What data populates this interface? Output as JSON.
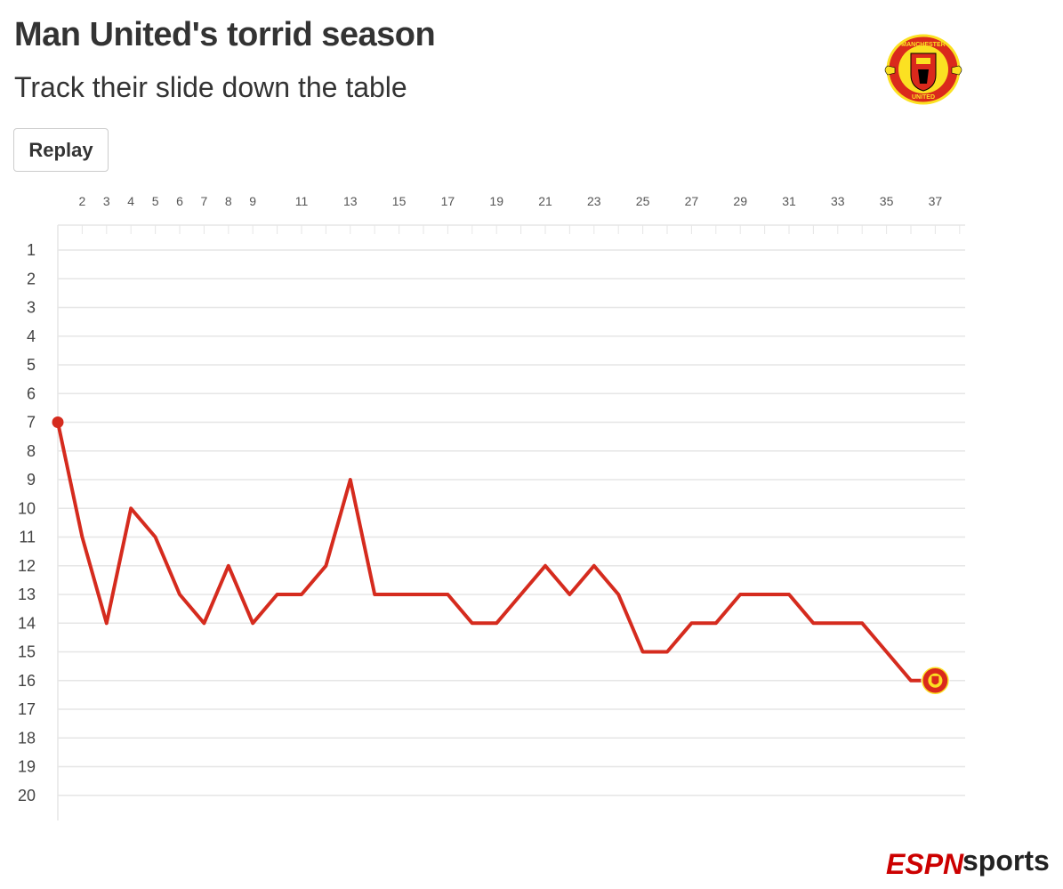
{
  "header": {
    "title": "Man United's torrid season",
    "subtitle": "Track their slide down the table"
  },
  "controls": {
    "replay_label": "Replay"
  },
  "branding": {
    "crest_text_top": "MANCHESTER",
    "crest_text_bottom": "UNITED",
    "footer_logo_left": "ESPN",
    "footer_logo_right": "sports"
  },
  "colors": {
    "line": "#d52b1e",
    "grid": "#e6e6e6",
    "crest_red": "#da291c",
    "crest_gold": "#fbe122"
  },
  "chart_data": {
    "type": "line",
    "title": "Man United's torrid season",
    "subtitle": "Track their slide down the table",
    "xlabel": "",
    "ylabel": "",
    "x_tick_labels": [
      2,
      3,
      4,
      5,
      6,
      7,
      8,
      9,
      11,
      13,
      15,
      17,
      19,
      21,
      23,
      25,
      27,
      29,
      31,
      33,
      35,
      37
    ],
    "y_tick_labels": [
      1,
      2,
      3,
      4,
      5,
      6,
      7,
      8,
      9,
      10,
      11,
      12,
      13,
      14,
      15,
      16,
      17,
      18,
      19,
      20
    ],
    "xlim": [
      1,
      38
    ],
    "ylim": [
      1,
      20
    ],
    "y_inverted": true,
    "grid": true,
    "series": [
      {
        "x": [
          1,
          2,
          3,
          4,
          5,
          6,
          7,
          8,
          9,
          10,
          11,
          12,
          13,
          14,
          15,
          16,
          17,
          18,
          19,
          20,
          21,
          22,
          23,
          24,
          25,
          26,
          27,
          28,
          29,
          30,
          31,
          32,
          33,
          34,
          35,
          36,
          37
        ],
        "values": [
          7,
          11,
          14,
          10,
          11,
          13,
          14,
          12,
          14,
          13,
          13,
          12,
          9,
          13,
          13,
          13,
          13,
          14,
          14,
          13,
          12,
          13,
          12,
          13,
          15,
          15,
          14,
          14,
          13,
          13,
          13,
          14,
          14,
          14,
          15,
          16,
          16
        ]
      }
    ]
  }
}
